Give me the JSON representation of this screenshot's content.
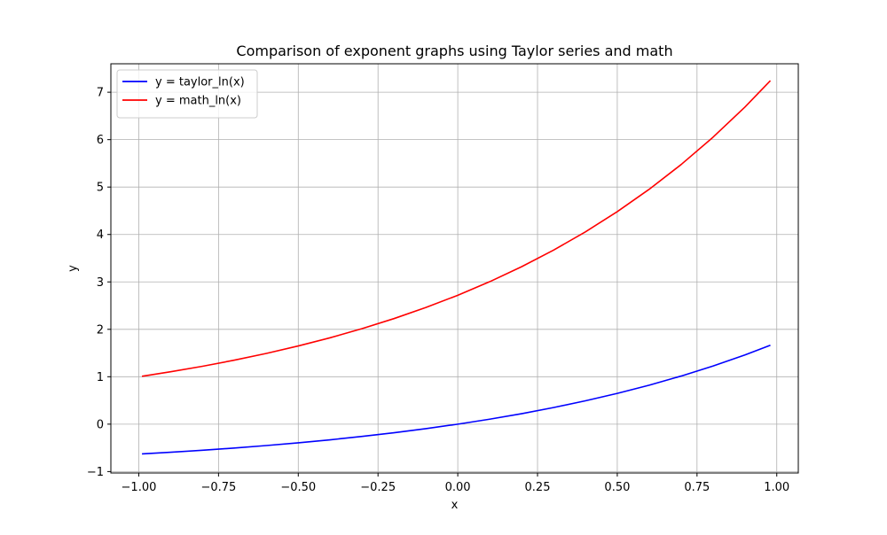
{
  "chart_data": {
    "type": "line",
    "title": "Comparison of exponent graphs using Taylor series and math",
    "xlabel": "x",
    "ylabel": "y",
    "xlim": [
      -1.0875,
      1.0675
    ],
    "ylim": [
      -1.03,
      7.6
    ],
    "x_ticks": [
      -1.0,
      -0.75,
      -0.5,
      -0.25,
      0.0,
      0.25,
      0.5,
      0.75,
      1.0
    ],
    "x_tick_labels": [
      "−1.00",
      "−0.75",
      "−0.50",
      "−0.25",
      "0.00",
      "0.25",
      "0.50",
      "0.75",
      "1.00"
    ],
    "y_ticks": [
      -1,
      0,
      1,
      2,
      3,
      4,
      5,
      6,
      7
    ],
    "y_tick_labels": [
      "−1",
      "0",
      "1",
      "2",
      "3",
      "4",
      "5",
      "6",
      "7"
    ],
    "grid": true,
    "legend_position": "top-left",
    "x": [
      -0.99,
      -0.9,
      -0.8,
      -0.7,
      -0.6,
      -0.5,
      -0.4,
      -0.3,
      -0.2,
      -0.1,
      0.0,
      0.1,
      0.2,
      0.3,
      0.4,
      0.5,
      0.6,
      0.7,
      0.8,
      0.9,
      0.98
    ],
    "series": [
      {
        "name": "y = taylor_ln(x)",
        "color": "#0000ff",
        "values": [
          -0.628,
          -0.593,
          -0.551,
          -0.503,
          -0.451,
          -0.393,
          -0.33,
          -0.259,
          -0.181,
          -0.095,
          0.0,
          0.105,
          0.221,
          0.35,
          0.492,
          0.649,
          0.822,
          1.014,
          1.226,
          1.46,
          1.664
        ]
      },
      {
        "name": "y = math_ln(x)",
        "color": "#ff0000",
        "values": [
          1.01,
          1.105,
          1.221,
          1.35,
          1.492,
          1.649,
          1.822,
          2.014,
          2.226,
          2.46,
          2.718,
          3.004,
          3.32,
          3.669,
          4.055,
          4.482,
          4.953,
          5.474,
          6.05,
          6.686,
          7.243
        ]
      }
    ]
  }
}
